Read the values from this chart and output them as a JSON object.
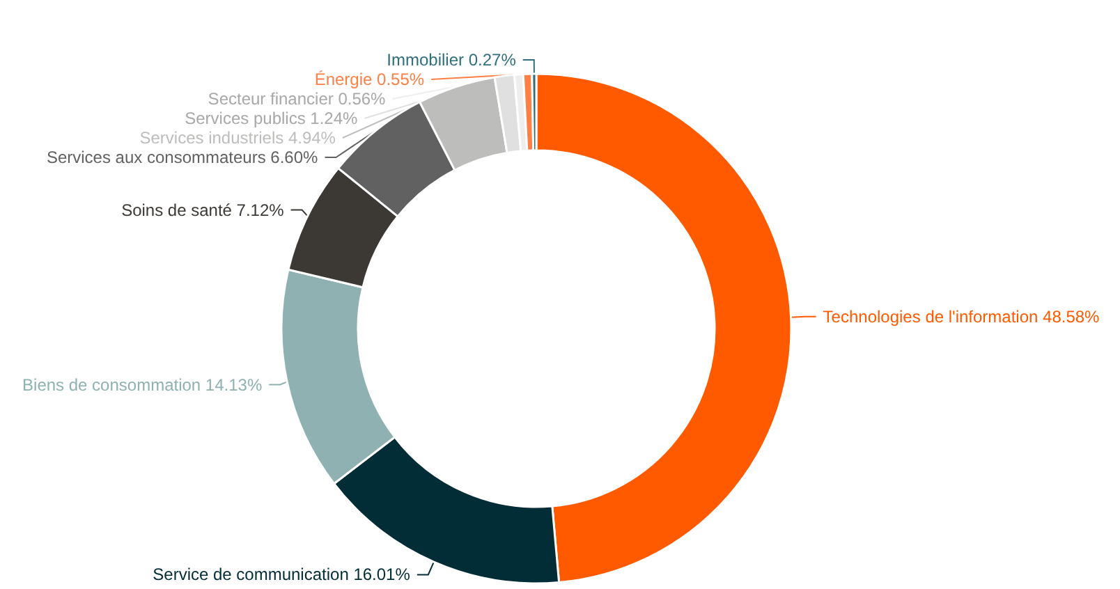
{
  "chart_data": {
    "type": "donut",
    "categories": [
      "Technologies de l'information",
      "Service de communication",
      "Biens de consommation",
      "Soins de santé",
      "Services aux consommateurs",
      "Services industriels",
      "Services publics",
      "Secteur financier",
      "Énergie",
      "Immobilier"
    ],
    "values": [
      48.58,
      16.01,
      14.13,
      7.12,
      6.6,
      4.94,
      1.24,
      0.56,
      0.55,
      0.27
    ],
    "value_labels": [
      "48.58%",
      "16.01%",
      "14.13%",
      "7.12%",
      "6.60%",
      "4.94%",
      "1.24%",
      "0.56%",
      "0.55%",
      "0.27%"
    ],
    "colors": [
      "#ff5a00",
      "#022c36",
      "#8fb1b1",
      "#3c3834",
      "#616161",
      "#bdbdbb",
      "#e0e0e0",
      "#eeeeee",
      "#ff7f45",
      "#2e6f7b"
    ],
    "legend": false
  }
}
